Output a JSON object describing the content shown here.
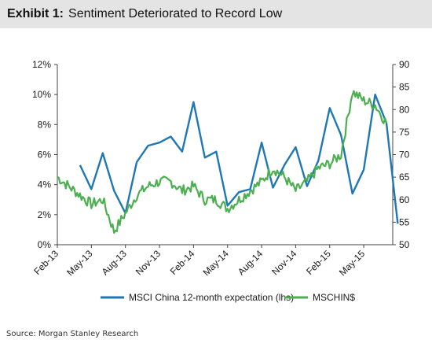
{
  "header": {
    "exhibit_label": "Exhibit 1:",
    "title": "Sentiment Deteriorated to Record Low"
  },
  "footer": {
    "source": "Source: Morgan Stanley Research"
  },
  "colors": {
    "blue": "#1f77b4",
    "green": "#4caf50",
    "header_bg": "#e4e4e4"
  },
  "chart_data": {
    "type": "line",
    "title": "",
    "xlabel": "",
    "ylabel": "",
    "x_ticks": [
      "Feb-13",
      "May-13",
      "Aug-13",
      "Nov-13",
      "Feb-14",
      "May-14",
      "Aug-14",
      "Nov-14",
      "Feb-15",
      "May-15"
    ],
    "x_range": [
      "2013-02",
      "2015-07"
    ],
    "y_left": {
      "min": 0,
      "max": 12,
      "ticks": [
        "0%",
        "2%",
        "4%",
        "6%",
        "8%",
        "10%",
        "12%"
      ]
    },
    "y_right": {
      "min": 50,
      "max": 90,
      "ticks": [
        "50",
        "55",
        "60",
        "65",
        "70",
        "75",
        "80",
        "85",
        "90"
      ]
    },
    "grid": false,
    "legend_position": "bottom",
    "series": [
      {
        "name": "MSCI China 12-month expectation (lhs)",
        "axis": "left",
        "color": "#1f77b4",
        "points": [
          [
            "2013-04",
            5.3
          ],
          [
            "2013-05",
            3.7
          ],
          [
            "2013-06",
            6.1
          ],
          [
            "2013-07",
            3.6
          ],
          [
            "2013-08",
            2.1
          ],
          [
            "2013-09",
            5.5
          ],
          [
            "2013-10",
            6.6
          ],
          [
            "2013-11",
            6.8
          ],
          [
            "2013-12",
            7.2
          ],
          [
            "2014-01",
            6.2
          ],
          [
            "2014-02",
            9.5
          ],
          [
            "2014-03",
            5.8
          ],
          [
            "2014-04",
            6.2
          ],
          [
            "2014-05",
            2.6
          ],
          [
            "2014-06",
            3.5
          ],
          [
            "2014-07",
            3.7
          ],
          [
            "2014-08",
            6.8
          ],
          [
            "2014-09",
            3.8
          ],
          [
            "2014-10",
            5.3
          ],
          [
            "2014-11",
            6.5
          ],
          [
            "2014-12",
            3.9
          ],
          [
            "2015-01",
            5.6
          ],
          [
            "2015-02",
            9.1
          ],
          [
            "2015-03",
            7.3
          ],
          [
            "2015-04",
            3.4
          ],
          [
            "2015-05",
            5.0
          ],
          [
            "2015-06",
            10.0
          ],
          [
            "2015-07",
            8.1
          ],
          [
            "2015-08",
            1.4
          ]
        ]
      },
      {
        "name": "MSCHIN$",
        "axis": "right",
        "color": "#4caf50",
        "points": [
          [
            "2013-02",
            65
          ],
          [
            "2013-03",
            63
          ],
          [
            "2013-04",
            61
          ],
          [
            "2013-05",
            59
          ],
          [
            "2013-06",
            60
          ],
          [
            "2013-07",
            53
          ],
          [
            "2013-08",
            57
          ],
          [
            "2013-09",
            61
          ],
          [
            "2013-10",
            63
          ],
          [
            "2013-11",
            64
          ],
          [
            "2013-12",
            64
          ],
          [
            "2014-01",
            62
          ],
          [
            "2014-02",
            63
          ],
          [
            "2014-03",
            60
          ],
          [
            "2014-04",
            60
          ],
          [
            "2014-05",
            58
          ],
          [
            "2014-06",
            60
          ],
          [
            "2014-07",
            62
          ],
          [
            "2014-08",
            64
          ],
          [
            "2014-09",
            67
          ],
          [
            "2014-10",
            65
          ],
          [
            "2014-11",
            62
          ],
          [
            "2014-12",
            64
          ],
          [
            "2015-01",
            67
          ],
          [
            "2015-02",
            68
          ],
          [
            "2015-03",
            70
          ],
          [
            "2015-04",
            84
          ],
          [
            "2015-05",
            82
          ],
          [
            "2015-06",
            81
          ],
          [
            "2015-07",
            77
          ]
        ]
      }
    ]
  }
}
